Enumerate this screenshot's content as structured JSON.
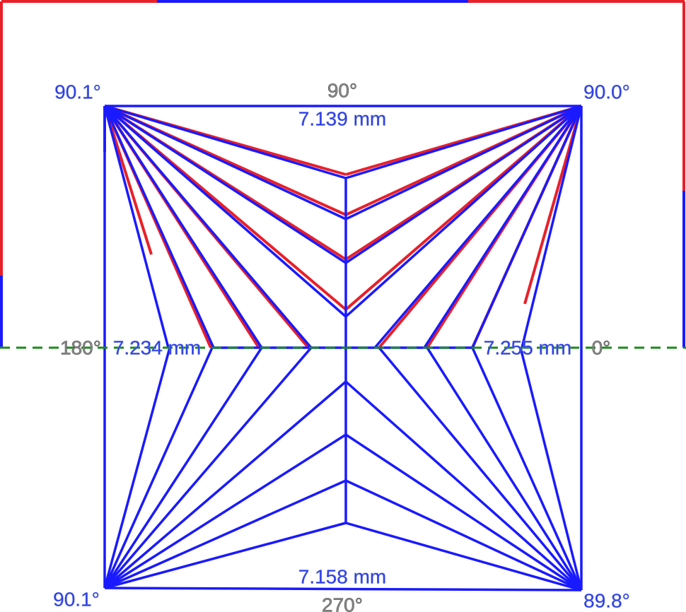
{
  "corners": {
    "top_left": "90.1°",
    "top_right": "90.0°",
    "bottom_left": "90.1°",
    "bottom_right": "89.8°"
  },
  "directions": {
    "top": "90°",
    "left": "180°",
    "right": "0°",
    "bottom": "270°"
  },
  "dimensions": {
    "top": "7.139 mm",
    "left": "7.234 mm",
    "right": "7.255 mm",
    "bottom": "7.158 mm"
  }
}
